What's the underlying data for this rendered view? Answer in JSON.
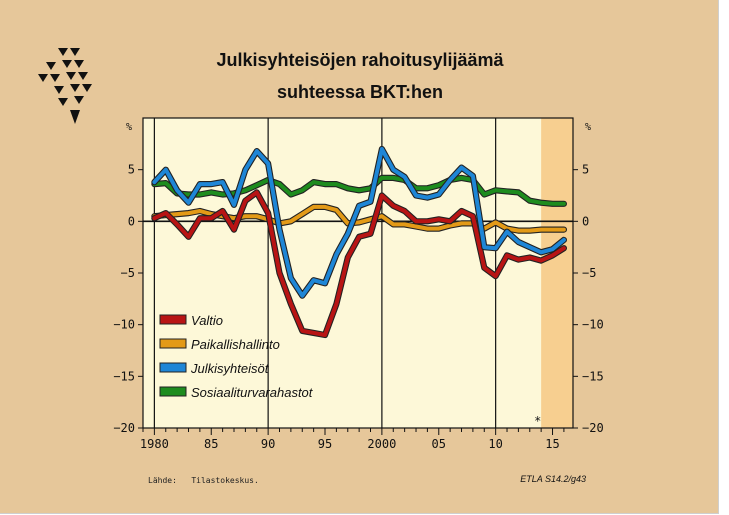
{
  "chart_data": {
    "type": "line",
    "title_lines": [
      "Julkisyhteisöjen rahoitusylijäämä",
      "suhteessa BKT:hen"
    ],
    "y_unit_left": "%",
    "y_unit_right": "%",
    "ylim": [
      -20,
      10
    ],
    "y_ticks": [
      5,
      0,
      -5,
      -10,
      -15,
      -20
    ],
    "y_tick_labels": [
      "5",
      "0",
      "−5",
      "−10",
      "−15",
      "−20"
    ],
    "xlim": [
      1979,
      2016.8
    ],
    "x_ticks": [
      1980,
      1985,
      1990,
      1995,
      2000,
      2005,
      2010,
      2015
    ],
    "x_tick_labels": [
      "1980",
      "85",
      "90",
      "95",
      "2000",
      "05",
      "10",
      "15"
    ],
    "forecast_region": [
      2014,
      2016.8
    ],
    "forecast_marker": "*",
    "forecast_marker_x": 2013.7,
    "grid": "vertical lines at 1980, 1990, 2000, 2010; zero line",
    "legend_position": "lower-left",
    "x": [
      1980,
      1981,
      1982,
      1983,
      1984,
      1985,
      1986,
      1987,
      1988,
      1989,
      1990,
      1991,
      1992,
      1993,
      1994,
      1995,
      1996,
      1997,
      1998,
      1999,
      2000,
      2001,
      2002,
      2003,
      2004,
      2005,
      2006,
      2007,
      2008,
      2009,
      2010,
      2011,
      2012,
      2013,
      2014,
      2015,
      2016
    ],
    "series": [
      {
        "name": "Valtio",
        "color": "#b81414",
        "values": [
          0.3,
          0.8,
          -0.3,
          -1.5,
          0.3,
          0.3,
          1.0,
          -0.8,
          2.0,
          2.8,
          0.8,
          -5.0,
          -8.0,
          -10.6,
          -10.8,
          -11.0,
          -8.0,
          -3.5,
          -1.5,
          -1.2,
          2.5,
          1.5,
          1.0,
          0.0,
          0.0,
          0.2,
          0.0,
          1.0,
          0.5,
          -4.5,
          -5.3,
          -3.3,
          -3.7,
          -3.5,
          -3.8,
          -3.3,
          -2.6
        ]
      },
      {
        "name": "Paikallishallinto",
        "color": "#e39a17",
        "values": [
          0.5,
          0.6,
          0.7,
          0.8,
          1.0,
          0.7,
          0.5,
          0.3,
          0.5,
          0.5,
          0.2,
          -0.2,
          0.0,
          0.7,
          1.4,
          1.4,
          1.1,
          -0.2,
          -0.1,
          0.2,
          0.5,
          -0.3,
          -0.3,
          -0.5,
          -0.7,
          -0.7,
          -0.4,
          -0.2,
          -0.2,
          -0.7,
          -0.1,
          -0.7,
          -0.9,
          -0.9,
          -0.8,
          -0.8,
          -0.8
        ]
      },
      {
        "name": "Julkisyhteisöt",
        "color": "#1e86d6",
        "values": [
          3.8,
          5.0,
          3.0,
          1.8,
          3.6,
          3.6,
          3.8,
          1.6,
          5.0,
          6.8,
          5.6,
          -0.8,
          -5.5,
          -7.2,
          -5.7,
          -6.0,
          -3.2,
          -1.2,
          1.5,
          1.9,
          7.0,
          5.0,
          4.3,
          2.5,
          2.3,
          2.6,
          4.0,
          5.2,
          4.4,
          -2.5,
          -2.6,
          -1.0,
          -2.0,
          -2.5,
          -3.0,
          -2.7,
          -1.8
        ]
      },
      {
        "name": "Sosiaaliturvarahastot",
        "color": "#1e8c1e",
        "values": [
          3.6,
          3.7,
          2.7,
          2.6,
          2.6,
          2.8,
          2.6,
          2.7,
          3.0,
          3.5,
          4.0,
          3.6,
          2.6,
          3.0,
          3.8,
          3.6,
          3.6,
          3.2,
          3.0,
          3.2,
          4.2,
          4.2,
          4.0,
          3.2,
          3.2,
          3.5,
          4.0,
          4.2,
          4.0,
          2.6,
          3.0,
          2.9,
          2.8,
          2.0,
          1.8,
          1.7,
          1.7
        ]
      }
    ]
  },
  "source_text": "Lähde:   Tilastokeskus.",
  "code_text": "ETLA S14.2/g43"
}
